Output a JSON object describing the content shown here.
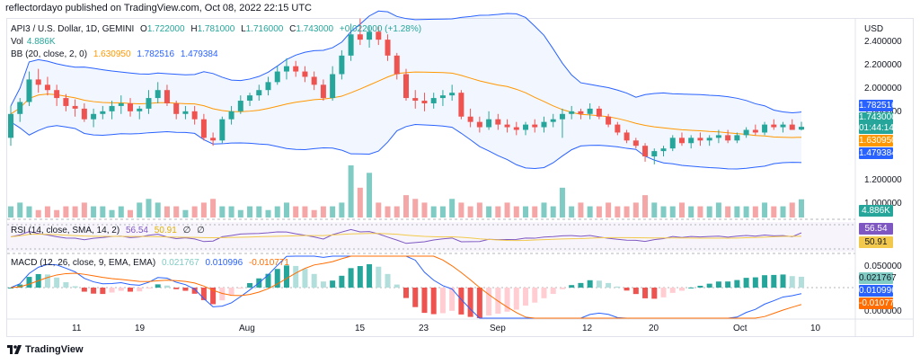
{
  "header": {
    "publisher": "reflectordayo published on TradingView.com, Oct 08, 2022 22:15 UTC"
  },
  "legend": {
    "symbol": "API3 / U.S. Dollar, 1D, GEMINI",
    "o_label": "O",
    "o": "1.722000",
    "h_label": "H",
    "h": "1.781000",
    "l_label": "L",
    "l": "1.716000",
    "c_label": "C",
    "c": "1.743000",
    "change": "+0.022000 (+1.28%)",
    "vol_label": "Vol",
    "vol": "4.886K",
    "bb_label": "BB (20, close, 2, 0)",
    "bb_mid": "1.630950",
    "bb_upper": "1.782516",
    "bb_lower": "1.479384",
    "rsi_label": "RSI (14, close, SMA, 14, 2)",
    "rsi": "56.54",
    "rsi_sma": "50.91",
    "rsi_extra1": "∅",
    "rsi_extra2": "∅",
    "macd_label": "MACD (12, 26, close, 9, EMA, EMA)",
    "macd_hist": "0.021767",
    "macd": "0.010996",
    "macd_signal": "-0.010771"
  },
  "price_axis": {
    "currency": "USD",
    "ticks": [
      "2.400000",
      "2.200000",
      "2.000000",
      "1.800000",
      "1.200000",
      "1.000000"
    ]
  },
  "tags": {
    "bb_upper": "1.782516",
    "last": "1.743000",
    "countdown": "01:44:14",
    "bb_mid": "1.630950",
    "bb_lower": "1.479384",
    "vol": "4.886K",
    "rsi": "56.54",
    "rsi_sma": "50.91",
    "macd_hist": "0.021767",
    "macd": "0.010996",
    "macd_signal": "-0.010771"
  },
  "macd_axis": {
    "ticks": [
      "0.050000",
      "0.000000"
    ]
  },
  "time_axis": [
    "11",
    "19",
    "Aug",
    "15",
    "23",
    "Sep",
    "12",
    "20",
    "Oct",
    "10"
  ],
  "colors": {
    "up": "#26a69a",
    "down": "#ef5350",
    "bb_band": "#2962ff",
    "bb_mid": "#ff9800",
    "rsi": "#7e57c2",
    "rsi_sma": "#f2c94c",
    "macd": "#2962ff",
    "signal": "#ff6d00"
  },
  "footer": {
    "brand": "TradingView"
  },
  "chart_data": {
    "type": "candlestick",
    "symbol": "API3 / U.S. Dollar, 1D, GEMINI",
    "x_range": [
      "2022-07-06",
      "2022-10-08"
    ],
    "ylim": [
      1.1,
      2.55
    ],
    "candles_ohlc": [
      [
        1.66,
        1.9,
        1.6,
        1.84
      ],
      [
        1.84,
        1.96,
        1.78,
        1.93
      ],
      [
        1.93,
        2.16,
        1.9,
        2.1
      ],
      [
        2.1,
        2.18,
        2.0,
        2.06
      ],
      [
        2.06,
        2.12,
        1.98,
        2.02
      ],
      [
        2.02,
        2.06,
        1.9,
        1.96
      ],
      [
        1.96,
        1.99,
        1.86,
        1.9
      ],
      [
        1.9,
        1.95,
        1.82,
        1.88
      ],
      [
        1.88,
        1.92,
        1.78,
        1.8
      ],
      [
        1.8,
        1.88,
        1.74,
        1.84
      ],
      [
        1.84,
        1.9,
        1.8,
        1.86
      ],
      [
        1.86,
        1.94,
        1.8,
        1.9
      ],
      [
        1.9,
        1.98,
        1.84,
        1.92
      ],
      [
        1.92,
        1.96,
        1.82,
        1.86
      ],
      [
        1.86,
        1.9,
        1.8,
        1.88
      ],
      [
        1.88,
        2.02,
        1.84,
        1.96
      ],
      [
        1.96,
        2.08,
        1.92,
        2.02
      ],
      [
        2.02,
        2.06,
        1.9,
        1.92
      ],
      [
        1.92,
        1.94,
        1.8,
        1.84
      ],
      [
        1.84,
        1.9,
        1.8,
        1.86
      ],
      [
        1.86,
        1.9,
        1.76,
        1.8
      ],
      [
        1.8,
        1.84,
        1.64,
        1.66
      ],
      [
        1.66,
        1.7,
        1.6,
        1.64
      ],
      [
        1.64,
        1.82,
        1.62,
        1.8
      ],
      [
        1.8,
        1.9,
        1.76,
        1.86
      ],
      [
        1.86,
        1.98,
        1.84,
        1.94
      ],
      [
        1.94,
        2.0,
        1.9,
        1.98
      ],
      [
        1.98,
        2.06,
        1.94,
        2.02
      ],
      [
        2.02,
        2.12,
        1.98,
        2.08
      ],
      [
        2.08,
        2.2,
        2.06,
        2.16
      ],
      [
        2.16,
        2.26,
        2.1,
        2.2
      ],
      [
        2.2,
        2.24,
        2.12,
        2.16
      ],
      [
        2.16,
        2.2,
        2.08,
        2.12
      ],
      [
        2.12,
        2.16,
        2.02,
        2.06
      ],
      [
        2.06,
        2.1,
        1.94,
        1.96
      ],
      [
        1.96,
        2.2,
        1.94,
        2.14
      ],
      [
        2.14,
        2.32,
        2.1,
        2.28
      ],
      [
        2.28,
        2.52,
        2.24,
        2.44
      ],
      [
        2.44,
        2.56,
        2.36,
        2.4
      ],
      [
        2.4,
        2.5,
        2.34,
        2.46
      ],
      [
        2.46,
        2.5,
        2.36,
        2.4
      ],
      [
        2.4,
        2.44,
        2.24,
        2.28
      ],
      [
        2.28,
        2.3,
        2.1,
        2.14
      ],
      [
        2.14,
        2.18,
        1.94,
        1.96
      ],
      [
        1.96,
        2.02,
        1.88,
        1.94
      ],
      [
        1.94,
        2.0,
        1.86,
        1.92
      ],
      [
        1.92,
        2.0,
        1.88,
        1.96
      ],
      [
        1.96,
        2.02,
        1.9,
        1.98
      ],
      [
        1.98,
        2.06,
        1.94,
        2.0
      ],
      [
        2.0,
        2.02,
        1.8,
        1.82
      ],
      [
        1.82,
        1.88,
        1.74,
        1.78
      ],
      [
        1.78,
        1.82,
        1.7,
        1.74
      ],
      [
        1.74,
        1.86,
        1.72,
        1.8
      ],
      [
        1.8,
        1.84,
        1.72,
        1.76
      ],
      [
        1.76,
        1.8,
        1.7,
        1.74
      ],
      [
        1.74,
        1.78,
        1.68,
        1.72
      ],
      [
        1.72,
        1.78,
        1.68,
        1.76
      ],
      [
        1.76,
        1.8,
        1.7,
        1.74
      ],
      [
        1.74,
        1.82,
        1.7,
        1.78
      ],
      [
        1.78,
        1.84,
        1.74,
        1.8
      ],
      [
        1.8,
        1.88,
        1.66,
        1.84
      ],
      [
        1.84,
        1.9,
        1.8,
        1.86
      ],
      [
        1.86,
        1.88,
        1.8,
        1.84
      ],
      [
        1.84,
        1.92,
        1.8,
        1.88
      ],
      [
        1.88,
        1.9,
        1.8,
        1.82
      ],
      [
        1.82,
        1.84,
        1.74,
        1.76
      ],
      [
        1.76,
        1.78,
        1.68,
        1.7
      ],
      [
        1.7,
        1.72,
        1.62,
        1.64
      ],
      [
        1.64,
        1.66,
        1.58,
        1.6
      ],
      [
        1.6,
        1.62,
        1.48,
        1.52
      ],
      [
        1.52,
        1.58,
        1.46,
        1.56
      ],
      [
        1.56,
        1.6,
        1.52,
        1.58
      ],
      [
        1.58,
        1.68,
        1.56,
        1.66
      ],
      [
        1.66,
        1.7,
        1.6,
        1.62
      ],
      [
        1.62,
        1.68,
        1.58,
        1.66
      ],
      [
        1.66,
        1.7,
        1.6,
        1.64
      ],
      [
        1.64,
        1.68,
        1.6,
        1.66
      ],
      [
        1.66,
        1.72,
        1.62,
        1.68
      ],
      [
        1.68,
        1.72,
        1.62,
        1.64
      ],
      [
        1.64,
        1.7,
        1.62,
        1.68
      ],
      [
        1.68,
        1.74,
        1.66,
        1.72
      ],
      [
        1.72,
        1.76,
        1.68,
        1.7
      ],
      [
        1.7,
        1.78,
        1.68,
        1.76
      ],
      [
        1.76,
        1.8,
        1.72,
        1.74
      ],
      [
        1.74,
        1.78,
        1.7,
        1.76
      ],
      [
        1.76,
        1.8,
        1.72,
        1.72
      ],
      [
        1.722,
        1.781,
        1.716,
        1.743
      ]
    ],
    "volume": [
      3,
      4,
      3,
      2,
      3,
      2,
      3,
      3,
      4,
      3,
      3,
      2,
      3,
      2,
      4,
      5,
      4,
      3,
      3,
      2,
      3,
      4,
      5,
      3,
      3,
      2,
      3,
      3,
      2,
      3,
      4,
      3,
      3,
      2,
      3,
      3,
      4,
      14,
      8,
      12,
      4,
      3,
      3,
      6,
      5,
      4,
      3,
      3,
      5,
      4,
      3,
      4,
      3,
      3,
      4,
      3,
      3,
      3,
      4,
      3,
      8,
      3,
      4,
      3,
      3,
      4,
      3,
      3,
      4,
      6,
      4,
      3,
      3,
      4,
      3,
      3,
      3,
      4,
      3,
      3,
      3,
      3,
      4,
      3,
      3,
      4,
      4.886
    ],
    "rsi_last": 56.54,
    "rsi_sma_last": 50.91,
    "macd_last": {
      "histogram": 0.021767,
      "macd": 0.010996,
      "signal": -0.010771
    }
  }
}
